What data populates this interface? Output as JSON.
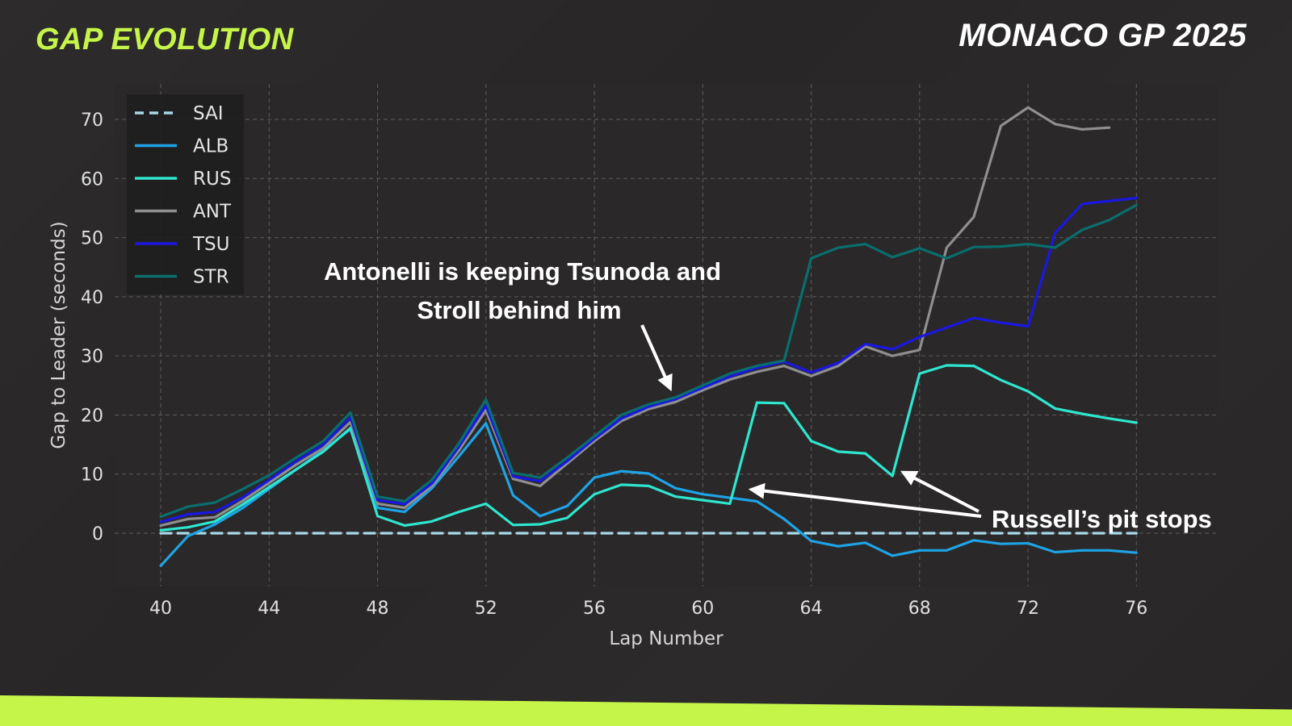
{
  "header": {
    "title_left": "GAP EVOLUTION",
    "title_right": "MONACO GP 2025"
  },
  "colors": {
    "accent": "#c6f54a",
    "background": "#282626"
  },
  "chart_data": {
    "type": "line",
    "title": "",
    "xlabel": "Lap Number",
    "ylabel": "Gap to Leader (seconds)",
    "xlim": [
      38.3,
      79.0
    ],
    "ylim": [
      -9.0,
      76.0
    ],
    "xticks": [
      40,
      44,
      48,
      52,
      56,
      60,
      64,
      68,
      72,
      76
    ],
    "yticks": [
      0,
      10,
      20,
      30,
      40,
      50,
      60,
      70
    ],
    "grid": true,
    "legend_position": "top-left",
    "series": [
      {
        "name": "SAI",
        "color": "#a8d8e8",
        "dashed": true,
        "x": [
          40,
          76
        ],
        "y": [
          0,
          0
        ]
      },
      {
        "name": "ALB",
        "color": "#1ea3e6",
        "dashed": false,
        "x": [
          40,
          41,
          42,
          43,
          44,
          45,
          46,
          47,
          48,
          49,
          50,
          51,
          52,
          53,
          54,
          55,
          56,
          57,
          58,
          59,
          60,
          61,
          62,
          63,
          64,
          65,
          66,
          67,
          68,
          69,
          70,
          71,
          72,
          73,
          74,
          75,
          76
        ],
        "y": [
          -5.5,
          -0.5,
          1.5,
          4.2,
          7.5,
          10.8,
          14.0,
          17.6,
          4.3,
          3.6,
          7.6,
          13.0,
          18.6,
          6.4,
          2.9,
          4.6,
          9.4,
          10.5,
          10.1,
          7.6,
          6.6,
          6.0,
          5.4,
          2.4,
          -1.3,
          -2.2,
          -1.6,
          -3.8,
          -2.9,
          -2.9,
          -1.2,
          -1.8,
          -1.7,
          -3.2,
          -2.9,
          -2.9,
          -3.3
        ]
      },
      {
        "name": "RUS",
        "color": "#2ee6cf",
        "dashed": false,
        "x": [
          40,
          41,
          42,
          43,
          44,
          45,
          46,
          47,
          48,
          49,
          50,
          51,
          52,
          53,
          54,
          55,
          56,
          57,
          58,
          59,
          60,
          61,
          62,
          63,
          64,
          65,
          66,
          67,
          68,
          69,
          70,
          71,
          72,
          73,
          74,
          75,
          76
        ],
        "y": [
          0.5,
          1.0,
          2.0,
          4.8,
          7.8,
          10.8,
          13.8,
          17.8,
          2.9,
          1.3,
          2.0,
          3.6,
          5.0,
          1.4,
          1.5,
          2.6,
          6.6,
          8.2,
          8.0,
          6.2,
          5.6,
          5.0,
          22.1,
          22.0,
          15.6,
          13.8,
          13.5,
          9.7,
          27.0,
          28.4,
          28.3,
          25.9,
          24.0,
          21.1,
          20.2,
          19.4,
          18.7
        ]
      },
      {
        "name": "ANT",
        "color": "#8f8f8f",
        "dashed": false,
        "x": [
          40,
          41,
          42,
          43,
          44,
          45,
          46,
          47,
          48,
          49,
          50,
          51,
          52,
          53,
          54,
          55,
          56,
          57,
          58,
          59,
          60,
          61,
          62,
          63,
          64,
          65,
          66,
          67,
          68,
          69,
          70,
          71,
          72,
          73,
          74,
          75
        ],
        "y": [
          1.3,
          2.4,
          2.7,
          5.4,
          8.5,
          11.6,
          14.4,
          18.8,
          5.0,
          4.3,
          8.0,
          14.0,
          20.8,
          9.2,
          8.0,
          11.8,
          15.6,
          19.0,
          21.0,
          22.2,
          24.2,
          26.0,
          27.3,
          28.3,
          26.6,
          28.3,
          31.6,
          30.0,
          31.0,
          48.3,
          53.5,
          68.9,
          72.0,
          69.2,
          68.3,
          68.6
        ]
      },
      {
        "name": "TSU",
        "color": "#1a18e0",
        "dashed": false,
        "x": [
          40,
          41,
          42,
          43,
          44,
          45,
          46,
          47,
          48,
          49,
          50,
          51,
          52,
          53,
          54,
          55,
          56,
          57,
          58,
          59,
          60,
          61,
          62,
          63,
          64,
          65,
          66,
          67,
          68,
          69,
          70,
          71,
          72,
          73,
          74,
          75,
          76
        ],
        "y": [
          1.9,
          3.2,
          3.6,
          6.0,
          9.0,
          12.2,
          15.0,
          19.6,
          5.6,
          4.9,
          8.4,
          14.6,
          21.6,
          9.6,
          8.8,
          12.2,
          16.0,
          19.4,
          21.4,
          22.7,
          24.6,
          26.5,
          28.0,
          29.0,
          27.2,
          28.8,
          32.0,
          31.1,
          33.2,
          34.8,
          36.4,
          35.6,
          35.0,
          50.8,
          55.7,
          56.2,
          56.7
        ]
      },
      {
        "name": "STR",
        "color": "#0a6e6e",
        "dashed": false,
        "x": [
          40,
          41,
          42,
          43,
          44,
          45,
          46,
          47,
          48,
          49,
          50,
          51,
          52,
          53,
          54,
          55,
          56,
          57,
          58,
          59,
          60,
          61,
          62,
          63,
          64,
          65,
          66,
          67,
          68,
          69,
          70,
          71,
          72,
          73,
          74,
          75,
          76
        ],
        "y": [
          2.8,
          4.5,
          5.2,
          7.4,
          9.8,
          12.8,
          15.6,
          20.4,
          6.2,
          5.4,
          9.0,
          15.2,
          22.6,
          10.2,
          9.4,
          12.8,
          16.4,
          20.0,
          21.8,
          23.0,
          25.0,
          27.0,
          28.3,
          29.2,
          46.5,
          48.3,
          48.9,
          46.7,
          48.2,
          46.5,
          48.4,
          48.5,
          48.9,
          48.3,
          51.3,
          53.0,
          55.5
        ]
      }
    ],
    "annotations": [
      {
        "text_lines": [
          "Antonelli is keeping Tsunoda and",
          "Stroll behind him"
        ],
        "arrow_to": [
          58.8,
          24.5
        ]
      },
      {
        "text_lines": [
          "Russell’s pit stops"
        ],
        "arrows_to": [
          [
            61.8,
            7.4
          ],
          [
            67.4,
            10.3
          ]
        ]
      }
    ]
  }
}
